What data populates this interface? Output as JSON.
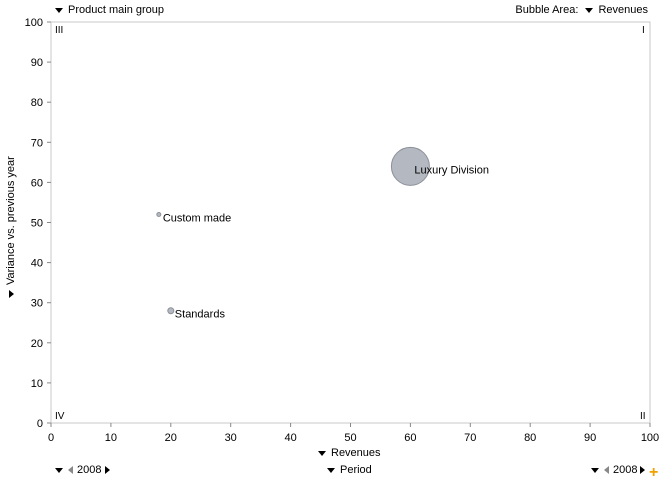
{
  "header": {
    "group_selector": "Product main group",
    "bubble_area_label": "Bubble Area:",
    "bubble_area_selector": "Revenues"
  },
  "footer": {
    "left_year": "2008",
    "center_selector": "Period",
    "right_year": "2008"
  },
  "quadrants": {
    "top_left": "III",
    "top_right": "I",
    "bottom_left": "IV",
    "bottom_right": "II"
  },
  "chart_data": {
    "type": "scatter",
    "xlabel": "Revenues",
    "ylabel": "Variance vs. previous year",
    "xlim": [
      0,
      100
    ],
    "ylim": [
      0,
      100
    ],
    "xticks": [
      0,
      10,
      20,
      30,
      40,
      50,
      60,
      70,
      80,
      90,
      100
    ],
    "yticks": [
      0,
      10,
      20,
      30,
      40,
      50,
      60,
      70,
      80,
      90,
      100
    ],
    "grid": false,
    "points": [
      {
        "label": "Luxury Division",
        "x": 60,
        "y": 64,
        "size": 60
      },
      {
        "label": "Custom made",
        "x": 18,
        "y": 52,
        "size": 0.4
      },
      {
        "label": "Standards",
        "x": 20,
        "y": 28,
        "size": 1.5
      }
    ],
    "colors": {
      "bubble_fill": "#b4b8c0",
      "bubble_stroke": "#8c9099"
    }
  }
}
